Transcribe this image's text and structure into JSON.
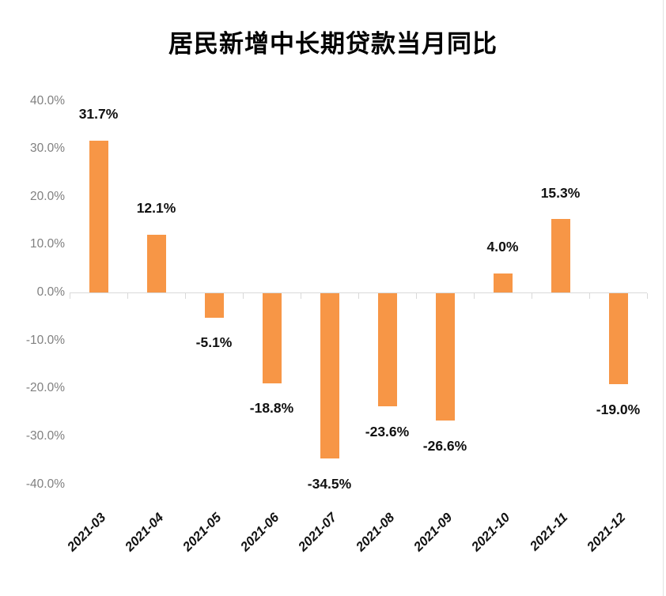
{
  "chart_data": {
    "type": "bar",
    "title": "居民新增中长期贷款当月同比",
    "categories": [
      "2021-03",
      "2021-04",
      "2021-05",
      "2021-06",
      "2021-07",
      "2021-08",
      "2021-09",
      "2021-10",
      "2021-11",
      "2021-12"
    ],
    "values": [
      31.7,
      12.1,
      -5.1,
      -18.8,
      -34.5,
      -23.6,
      -26.6,
      4.0,
      15.3,
      -19.0
    ],
    "data_labels": [
      "31.7%",
      "12.1%",
      "-5.1%",
      "-18.8%",
      "-34.5%",
      "-23.6%",
      "-26.6%",
      "4.0%",
      "15.3%",
      "-19.0%"
    ],
    "y_tick_labels": [
      "40.0%",
      "30.0%",
      "20.0%",
      "10.0%",
      "0.0%",
      "-10.0%",
      "-20.0%",
      "-30.0%",
      "-40.0%"
    ],
    "y_tick_values": [
      40,
      30,
      20,
      10,
      0,
      -10,
      -20,
      -30,
      -40
    ],
    "ylim": [
      -40,
      40
    ],
    "xlabel": "",
    "ylabel": "",
    "legend": "none",
    "grid": false,
    "bar_color": "#F79646",
    "axis_color": "#D9D9D9",
    "y_label_color": "#808080",
    "data_label_color": "#111111",
    "x_label_color": "#111111"
  }
}
